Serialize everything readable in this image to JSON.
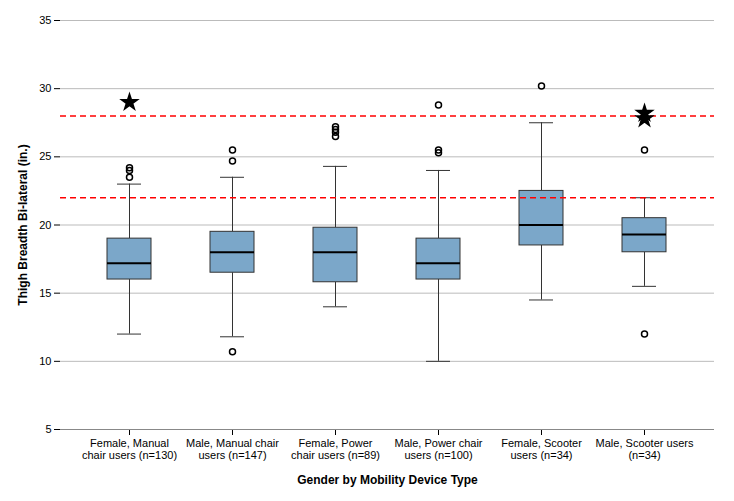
{
  "chart_data": {
    "type": "box",
    "xlabel": "Gender by Mobility Device Type",
    "ylabel": "Thigh Breadth Bi-lateral (in.)",
    "categories": [
      "Female, Manual\nchair users (n=130)",
      "Male, Manual chair\nusers (n=147)",
      "Female, Power\nchair users (n=89)",
      "Male, Power chair\nusers (n=100)",
      "Female, Scooter\nusers (n=34)",
      "Male, Scooter users\n(n=34)"
    ],
    "boxes": [
      {
        "median": 17.2,
        "q1": 16.0,
        "q3": 19.0,
        "whislo": 12.0,
        "whishi": 23.0,
        "fliers": [
          {
            "marker": "circle",
            "values": [
              23.5,
              24.0,
              24.2
            ]
          },
          {
            "marker": "star",
            "values": [
              29.0
            ]
          }
        ]
      },
      {
        "median": 18.0,
        "q1": 16.5,
        "q3": 19.5,
        "whislo": 11.8,
        "whishi": 23.5,
        "fliers": [
          {
            "marker": "circle",
            "values": [
              10.7,
              24.7,
              25.5
            ]
          },
          {
            "marker": "star",
            "values": []
          }
        ]
      },
      {
        "median": 18.0,
        "q1": 15.8,
        "q3": 19.8,
        "whislo": 14.0,
        "whishi": 24.3,
        "fliers": [
          {
            "marker": "circle",
            "values": [
              26.5,
              26.8,
              27.0,
              27.2
            ]
          },
          {
            "marker": "star",
            "values": []
          }
        ]
      },
      {
        "median": 17.2,
        "q1": 16.0,
        "q3": 19.0,
        "whislo": 10.0,
        "whishi": 24.0,
        "fliers": [
          {
            "marker": "circle",
            "values": [
              25.3,
              25.5,
              28.8
            ]
          },
          {
            "marker": "star",
            "values": []
          }
        ]
      },
      {
        "median": 20.0,
        "q1": 18.5,
        "q3": 22.5,
        "whislo": 14.5,
        "whishi": 27.5,
        "fliers": [
          {
            "marker": "circle",
            "values": [
              30.2
            ]
          },
          {
            "marker": "star",
            "values": []
          }
        ]
      },
      {
        "median": 19.3,
        "q1": 18.0,
        "q3": 20.5,
        "whislo": 15.5,
        "whishi": 22.0,
        "fliers": [
          {
            "marker": "circle",
            "values": [
              12.0,
              25.5
            ]
          },
          {
            "marker": "star",
            "values": [
              27.8,
              28.2
            ]
          }
        ]
      }
    ],
    "lines": [
      {
        "y": 22.0,
        "color": "red",
        "line_style": "dashed"
      },
      {
        "y": 28.0,
        "color": "red",
        "line_style": "dashed"
      }
    ],
    "color": "#7BA7C9",
    "ylim": [
      5,
      35
    ],
    "yticks": [
      5,
      10,
      15,
      20,
      25,
      30,
      35
    ],
    "grid": true
  }
}
